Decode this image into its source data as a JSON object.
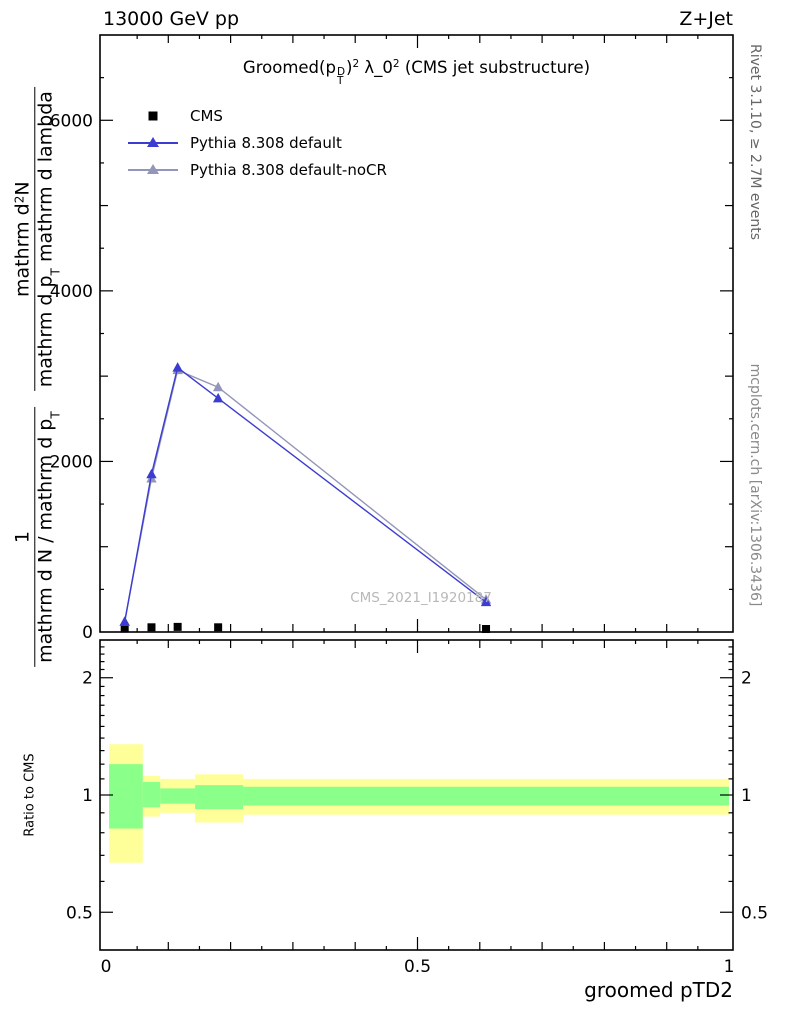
{
  "header": {
    "left_title": "13000 GeV pp",
    "right_title": "Z+Jet"
  },
  "side_notes": {
    "rivet": "Rivet 3.1.10, ≥ 2.7M events",
    "mcplots": "mcplots.cern.ch [arXiv:1306.3436]"
  },
  "watermark": "CMS_2021_I1920187",
  "plot_title": {
    "p1": "Groomed(p",
    "sup_D": "D",
    "sub_T": "T",
    "p2": ")",
    "sup_2a": "2",
    "p3": " λ_0",
    "sup_2b": "2",
    "p4": " (CMS jet substructure)"
  },
  "ylabel": {
    "f1_num": "1",
    "f1_den": "mathrm d N / mathrm d p",
    "f1_den_sub": "T",
    "f2_num_pre": "mathrm d",
    "f2_num_sup": "2",
    "f2_num_post": "N",
    "f2_den_a": "mathrm d p",
    "f2_den_sub": "T",
    "f2_den_b": " mathrm d lambda"
  },
  "ratio_ylabel": "Ratio to CMS",
  "xlabel": "groomed pTD2",
  "legend": [
    {
      "label": "CMS"
    },
    {
      "label": "Pythia 8.308 default"
    },
    {
      "label": "Pythia 8.308 default-noCR"
    }
  ],
  "colors": {
    "cms": "#000000",
    "pythia_default": "#3c3cd0",
    "pythia_nocr": "#9396b9",
    "band_yellow": "#ffff99",
    "band_green": "#8aff8a",
    "watermark": "#b8b8b8"
  },
  "chart_data": {
    "type": "line",
    "title": "Groomed(p_T^D)^2 λ_0^2 (CMS jet substructure)",
    "xlabel": "groomed pTD2",
    "ylabel_literal": "1 / mathrm d N / mathrm d p_T · mathrm d^2 N / mathrm d p_T mathrm d lambda",
    "legend_position": "top-left",
    "main": {
      "xlim": [
        0,
        1
      ],
      "ylim": [
        0,
        7000
      ],
      "xticks": [
        0,
        0.5,
        1
      ],
      "yticks": [
        0,
        2000,
        4000,
        6000
      ],
      "x": [
        0.03,
        0.073,
        0.115,
        0.18,
        0.61
      ],
      "series": [
        {
          "name": "CMS",
          "style": "squares",
          "color_key": "cms",
          "values": [
            40,
            55,
            60,
            55,
            35
          ]
        },
        {
          "name": "Pythia 8.308 default",
          "style": "line-triangles",
          "color_key": "pythia_default",
          "values": [
            120,
            1850,
            3100,
            2740,
            350
          ]
        },
        {
          "name": "Pythia 8.308 default-noCR",
          "style": "line-triangles",
          "color_key": "pythia_nocr",
          "values": [
            120,
            1800,
            3070,
            2870,
            380
          ]
        }
      ]
    },
    "ratio": {
      "ylabel": "Ratio to CMS",
      "yscale": "log",
      "ylim": [
        0.4,
        2.5
      ],
      "yticks": [
        0.5,
        1,
        2
      ],
      "bands": [
        {
          "x0": 0.005,
          "x1": 0.059,
          "yellow": [
            0.67,
            1.35
          ],
          "green": [
            0.82,
            1.2
          ]
        },
        {
          "x0": 0.059,
          "x1": 0.087,
          "yellow": [
            0.88,
            1.12
          ],
          "green": [
            0.93,
            1.08
          ]
        },
        {
          "x0": 0.087,
          "x1": 0.143,
          "yellow": [
            0.9,
            1.1
          ],
          "green": [
            0.95,
            1.04
          ]
        },
        {
          "x0": 0.143,
          "x1": 0.22,
          "yellow": [
            0.85,
            1.13
          ],
          "green": [
            0.92,
            1.06
          ]
        },
        {
          "x0": 0.22,
          "x1": 1.0,
          "yellow": [
            0.89,
            1.1
          ],
          "green": [
            0.94,
            1.05
          ]
        }
      ]
    }
  }
}
